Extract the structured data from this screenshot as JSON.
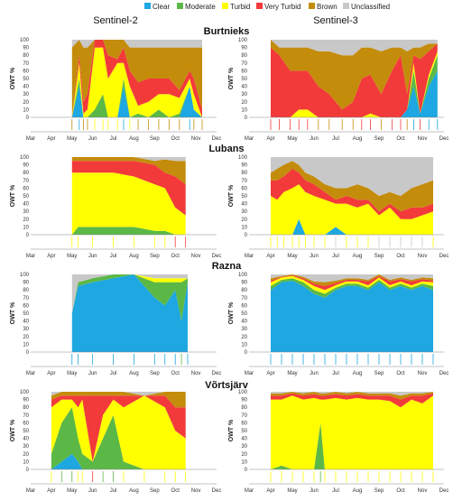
{
  "legend": [
    {
      "key": "clear",
      "label": "Clear",
      "color": "#1ea7e1"
    },
    {
      "key": "moderate",
      "label": "Moderate",
      "color": "#5cb846"
    },
    {
      "key": "turbid",
      "label": "Turbid",
      "color": "#ffff00"
    },
    {
      "key": "very_turbid",
      "label": "Very Turbid",
      "color": "#f23a3a"
    },
    {
      "key": "brown",
      "label": "Brown",
      "color": "#c48c0b"
    },
    {
      "key": "unclassified",
      "label": "Unclassified",
      "color": "#c8c8c8"
    }
  ],
  "columns": [
    "Sentinel-2",
    "Sentinel-3"
  ],
  "months": [
    "Mar",
    "Apr",
    "May",
    "Jun",
    "Jul",
    "Aug",
    "Sep",
    "Oct",
    "Nov",
    "Dec"
  ],
  "ylabel": "OWT %",
  "yticks": [
    "0",
    "10",
    "20",
    "30",
    "40",
    "50",
    "60",
    "70",
    "80",
    "90",
    "100"
  ],
  "chart_data": [
    {
      "lake": "Burtnieks",
      "sensor": "Sentinel-2",
      "type": "area",
      "x": [
        2.0,
        2.35,
        2.55,
        2.75,
        3.1,
        3.5,
        3.75,
        4.2,
        4.5,
        4.8,
        5.2,
        5.7,
        6.2,
        6.7,
        7.2,
        7.7,
        7.9,
        8.3
      ],
      "series": [
        {
          "name": "Clear",
          "values": [
            0,
            40,
            0,
            0,
            0,
            0,
            0,
            0,
            40,
            0,
            0,
            0,
            0,
            0,
            0,
            40,
            10,
            0
          ]
        },
        {
          "name": "Moderate",
          "values": [
            0,
            10,
            0,
            0,
            10,
            30,
            0,
            0,
            10,
            0,
            5,
            0,
            10,
            0,
            5,
            0,
            0,
            0
          ]
        },
        {
          "name": "Turbid",
          "values": [
            0,
            20,
            5,
            10,
            80,
            60,
            50,
            70,
            20,
            40,
            10,
            20,
            20,
            30,
            20,
            10,
            20,
            0
          ]
        },
        {
          "name": "Very Turbid",
          "values": [
            0,
            10,
            15,
            20,
            10,
            10,
            30,
            5,
            20,
            20,
            30,
            30,
            20,
            20,
            10,
            10,
            20,
            10
          ]
        },
        {
          "name": "Brown",
          "values": [
            90,
            20,
            70,
            60,
            0,
            0,
            20,
            25,
            10,
            30,
            45,
            40,
            40,
            40,
            55,
            30,
            40,
            80
          ]
        },
        {
          "name": "Unclassified",
          "values": [
            10,
            0,
            10,
            10,
            0,
            0,
            0,
            0,
            0,
            10,
            10,
            10,
            10,
            10,
            10,
            10,
            10,
            10
          ]
        }
      ]
    },
    {
      "lake": "Burtnieks",
      "sensor": "Sentinel-3",
      "type": "area",
      "x": [
        1.0,
        1.4,
        1.9,
        2.3,
        2.7,
        3.2,
        3.7,
        4.3,
        4.8,
        5.2,
        5.6,
        6.1,
        6.6,
        7.0,
        7.3,
        7.6,
        7.9,
        8.3,
        8.7
      ],
      "series": [
        {
          "name": "Clear",
          "values": [
            0,
            0,
            0,
            0,
            0,
            0,
            0,
            0,
            0,
            0,
            0,
            0,
            0,
            0,
            10,
            40,
            5,
            40,
            60
          ]
        },
        {
          "name": "Moderate",
          "values": [
            0,
            0,
            0,
            0,
            0,
            0,
            0,
            0,
            0,
            0,
            0,
            0,
            0,
            0,
            0,
            20,
            0,
            10,
            20
          ]
        },
        {
          "name": "Turbid",
          "values": [
            0,
            0,
            0,
            10,
            10,
            0,
            0,
            0,
            0,
            0,
            5,
            0,
            0,
            0,
            0,
            10,
            0,
            5,
            5
          ]
        },
        {
          "name": "Very Turbid",
          "values": [
            90,
            80,
            60,
            50,
            50,
            40,
            30,
            10,
            20,
            50,
            50,
            30,
            60,
            80,
            20,
            10,
            70,
            30,
            10
          ]
        },
        {
          "name": "Brown",
          "values": [
            10,
            10,
            30,
            30,
            30,
            45,
            55,
            70,
            60,
            40,
            35,
            55,
            30,
            10,
            55,
            10,
            15,
            10,
            0
          ]
        },
        {
          "name": "Unclassified",
          "values": [
            0,
            10,
            10,
            10,
            10,
            15,
            15,
            20,
            20,
            10,
            10,
            15,
            10,
            10,
            15,
            10,
            10,
            5,
            5
          ]
        }
      ]
    },
    {
      "lake": "Lubans",
      "sensor": "Sentinel-2",
      "type": "area",
      "x": [
        2.0,
        2.3,
        3.0,
        4.0,
        5.0,
        6.0,
        6.5,
        7.0,
        7.5
      ],
      "series": [
        {
          "name": "Clear",
          "values": [
            0,
            0,
            0,
            0,
            0,
            0,
            0,
            0,
            0
          ]
        },
        {
          "name": "Moderate",
          "values": [
            0,
            10,
            10,
            10,
            10,
            5,
            5,
            0,
            0
          ]
        },
        {
          "name": "Turbid",
          "values": [
            80,
            70,
            70,
            70,
            65,
            60,
            55,
            35,
            25
          ]
        },
        {
          "name": "Very Turbid",
          "values": [
            15,
            15,
            15,
            15,
            20,
            25,
            20,
            40,
            40
          ]
        },
        {
          "name": "Brown",
          "values": [
            5,
            5,
            5,
            5,
            5,
            5,
            17,
            20,
            30
          ]
        },
        {
          "name": "Unclassified",
          "values": [
            0,
            0,
            0,
            0,
            0,
            5,
            3,
            5,
            5
          ]
        }
      ]
    },
    {
      "lake": "Lubans",
      "sensor": "Sentinel-3",
      "type": "area",
      "x": [
        1.0,
        1.3,
        1.6,
        2.0,
        2.3,
        2.6,
        3.0,
        3.5,
        4.0,
        4.5,
        5.0,
        5.5,
        6.0,
        6.5,
        7.0,
        7.5,
        8.0,
        8.5
      ],
      "series": [
        {
          "name": "Clear",
          "values": [
            0,
            0,
            0,
            0,
            20,
            0,
            0,
            0,
            10,
            0,
            0,
            0,
            0,
            0,
            0,
            0,
            0,
            0
          ]
        },
        {
          "name": "Moderate",
          "values": [
            0,
            0,
            0,
            0,
            0,
            0,
            0,
            0,
            0,
            0,
            0,
            0,
            0,
            0,
            0,
            0,
            0,
            0
          ]
        },
        {
          "name": "Turbid",
          "values": [
            50,
            45,
            55,
            60,
            45,
            55,
            50,
            45,
            30,
            40,
            35,
            40,
            25,
            35,
            20,
            20,
            25,
            30
          ]
        },
        {
          "name": "Very Turbid",
          "values": [
            20,
            25,
            20,
            25,
            15,
            15,
            15,
            10,
            5,
            10,
            10,
            5,
            5,
            5,
            10,
            15,
            10,
            10
          ]
        },
        {
          "name": "Brown",
          "values": [
            10,
            15,
            15,
            10,
            10,
            10,
            10,
            10,
            15,
            10,
            20,
            15,
            20,
            15,
            20,
            25,
            30,
            30
          ]
        },
        {
          "name": "Unclassified",
          "values": [
            20,
            15,
            10,
            5,
            10,
            20,
            25,
            35,
            40,
            40,
            35,
            40,
            50,
            45,
            50,
            40,
            35,
            30
          ]
        }
      ]
    },
    {
      "lake": "Razna",
      "sensor": "Sentinel-2",
      "type": "area",
      "x": [
        2.0,
        2.3,
        3.0,
        4.0,
        5.0,
        6.0,
        6.5,
        7.0,
        7.3,
        7.6
      ],
      "series": [
        {
          "name": "Clear",
          "values": [
            50,
            85,
            90,
            95,
            100,
            70,
            60,
            80,
            40,
            90
          ]
        },
        {
          "name": "Moderate",
          "values": [
            0,
            5,
            5,
            5,
            0,
            20,
            30,
            10,
            50,
            5
          ]
        },
        {
          "name": "Turbid",
          "values": [
            0,
            0,
            0,
            0,
            0,
            5,
            5,
            5,
            5,
            0
          ]
        },
        {
          "name": "Very Turbid",
          "values": [
            0,
            0,
            0,
            0,
            0,
            0,
            0,
            0,
            0,
            0
          ]
        },
        {
          "name": "Brown",
          "values": [
            0,
            0,
            0,
            0,
            0,
            0,
            0,
            0,
            0,
            0
          ]
        },
        {
          "name": "Unclassified",
          "values": [
            50,
            10,
            5,
            0,
            0,
            5,
            5,
            5,
            5,
            5
          ]
        }
      ]
    },
    {
      "lake": "Razna",
      "sensor": "Sentinel-3",
      "type": "area",
      "x": [
        1.0,
        1.5,
        2.0,
        2.5,
        3.0,
        3.5,
        4.0,
        4.5,
        5.0,
        5.5,
        6.0,
        6.5,
        7.0,
        7.5,
        8.0,
        8.5
      ],
      "series": [
        {
          "name": "Clear",
          "values": [
            80,
            90,
            92,
            85,
            75,
            70,
            80,
            85,
            85,
            80,
            90,
            80,
            85,
            80,
            85,
            80
          ]
        },
        {
          "name": "Moderate",
          "values": [
            5,
            3,
            3,
            5,
            5,
            5,
            3,
            3,
            3,
            3,
            3,
            3,
            3,
            3,
            3,
            5
          ]
        },
        {
          "name": "Turbid",
          "values": [
            5,
            3,
            3,
            3,
            5,
            5,
            3,
            3,
            3,
            3,
            3,
            3,
            3,
            3,
            3,
            5
          ]
        },
        {
          "name": "Very Turbid",
          "values": [
            2,
            1,
            1,
            2,
            3,
            5,
            3,
            2,
            2,
            5,
            2,
            5,
            3,
            5,
            3,
            2
          ]
        },
        {
          "name": "Brown",
          "values": [
            3,
            1,
            1,
            2,
            3,
            5,
            3,
            2,
            2,
            2,
            2,
            2,
            2,
            2,
            2,
            3
          ]
        },
        {
          "name": "Unclassified",
          "values": [
            5,
            2,
            0,
            3,
            9,
            10,
            8,
            5,
            5,
            7,
            0,
            7,
            4,
            7,
            4,
            5
          ]
        }
      ]
    },
    {
      "lake": "Võrtsjärv",
      "sensor": "Sentinel-2",
      "type": "area",
      "x": [
        1.0,
        1.5,
        2.0,
        2.3,
        2.5,
        3.0,
        3.5,
        4.0,
        4.5,
        5.5,
        6.5,
        7.0,
        7.5
      ],
      "series": [
        {
          "name": "Clear",
          "values": [
            0,
            10,
            20,
            10,
            0,
            0,
            0,
            0,
            0,
            0,
            0,
            0,
            0
          ]
        },
        {
          "name": "Moderate",
          "values": [
            20,
            50,
            60,
            30,
            20,
            10,
            40,
            70,
            10,
            0,
            0,
            0,
            0
          ]
        },
        {
          "name": "Turbid",
          "values": [
            60,
            30,
            10,
            40,
            70,
            0,
            30,
            20,
            70,
            95,
            80,
            50,
            40
          ]
        },
        {
          "name": "Very Turbid",
          "values": [
            10,
            5,
            5,
            15,
            5,
            85,
            25,
            5,
            15,
            0,
            15,
            30,
            40
          ]
        },
        {
          "name": "Brown",
          "values": [
            5,
            5,
            5,
            5,
            5,
            5,
            5,
            5,
            5,
            0,
            5,
            20,
            20
          ]
        },
        {
          "name": "Unclassified",
          "values": [
            5,
            0,
            0,
            0,
            0,
            0,
            0,
            0,
            0,
            5,
            0,
            0,
            0
          ]
        }
      ]
    },
    {
      "lake": "Võrtsjärv",
      "sensor": "Sentinel-3",
      "type": "area",
      "x": [
        1.0,
        1.5,
        2.0,
        2.5,
        3.0,
        3.3,
        3.5,
        4.0,
        4.5,
        5.0,
        5.5,
        6.0,
        6.5,
        7.0,
        7.5,
        8.0,
        8.5
      ],
      "series": [
        {
          "name": "Clear",
          "values": [
            0,
            0,
            0,
            0,
            0,
            0,
            0,
            0,
            0,
            0,
            0,
            0,
            0,
            0,
            0,
            0,
            0
          ]
        },
        {
          "name": "Moderate",
          "values": [
            0,
            5,
            0,
            0,
            0,
            60,
            0,
            0,
            0,
            0,
            0,
            0,
            0,
            0,
            0,
            0,
            0
          ]
        },
        {
          "name": "Turbid",
          "values": [
            90,
            85,
            95,
            90,
            92,
            30,
            90,
            92,
            90,
            92,
            90,
            90,
            88,
            80,
            90,
            85,
            95
          ]
        },
        {
          "name": "Very Turbid",
          "values": [
            5,
            5,
            3,
            5,
            5,
            5,
            5,
            5,
            5,
            5,
            5,
            5,
            7,
            10,
            5,
            10,
            3
          ]
        },
        {
          "name": "Brown",
          "values": [
            3,
            3,
            2,
            3,
            3,
            3,
            3,
            3,
            3,
            3,
            3,
            3,
            3,
            5,
            3,
            3,
            2
          ]
        },
        {
          "name": "Unclassified",
          "values": [
            2,
            2,
            0,
            2,
            0,
            2,
            2,
            0,
            2,
            0,
            2,
            2,
            2,
            5,
            2,
            2,
            0
          ]
        }
      ]
    }
  ]
}
